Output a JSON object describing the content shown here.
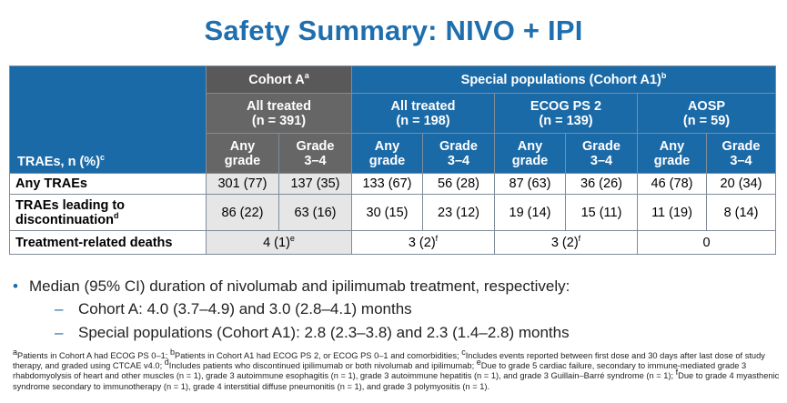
{
  "title": "Safety Summary: NIVO + IPI",
  "table": {
    "cohort_a": "Cohort A",
    "cohort_a_sup": "a",
    "special": "Special populations (Cohort A1)",
    "special_sup": "b",
    "groups": [
      {
        "line1": "All treated",
        "line2": "(n = 391)"
      },
      {
        "line1": "All treated",
        "line2": "(n = 198)"
      },
      {
        "line1": "ECOG PS 2",
        "line2": "(n = 139)"
      },
      {
        "line1": "AOSP",
        "line2": "(n = 59)"
      }
    ],
    "row_header": "TRAEs, n (%)",
    "row_header_sup": "c",
    "col_any": [
      "Any",
      "grade"
    ],
    "col_g34": [
      "Grade",
      "3–4"
    ],
    "rows": [
      {
        "label": "Any TRAEs",
        "values": [
          "301 (77)",
          "137 (35)",
          "133 (67)",
          "56 (28)",
          "87 (63)",
          "36 (26)",
          "46 (78)",
          "20 (34)"
        ]
      },
      {
        "label_line1": "TRAEs leading to",
        "label_line2": "discontinuation",
        "label_sup": "d",
        "values": [
          "86 (22)",
          "63 (16)",
          "30 (15)",
          "23 (12)",
          "19 (14)",
          "15 (11)",
          "11 (19)",
          "8 (14)"
        ]
      }
    ],
    "deaths": {
      "label": "Treatment-related deaths",
      "values": [
        "4 (1)",
        "3 (2)",
        "3 (2)",
        "0"
      ],
      "sups": [
        "e",
        "f",
        "f",
        ""
      ]
    }
  },
  "bullets": {
    "main": "Median (95% CI) duration of nivolumab and ipilimumab treatment, respectively:",
    "sub": [
      "Cohort A: 4.0 (3.7–4.9) and 3.0 (2.8–4.1) months",
      "Special populations (Cohort A1): 2.8 (2.3–3.8) and 2.3 (1.4–2.8) months"
    ]
  },
  "footnotes": [
    {
      "mark": "a",
      "text": "Patients in Cohort A had ECOG PS 0–1; "
    },
    {
      "mark": "b",
      "text": "Patients in Cohort A1 had ECOG PS 2, or ECOG PS 0–1 and comorbidities; "
    },
    {
      "mark": "c",
      "text": "Includes events reported between first dose and 30 days after last dose of study therapy, and graded using CTCAE v4.0; "
    },
    {
      "mark": "d",
      "text": "Includes patients who discontinued ipilimumab or both nivolumab and ipilimumab; "
    },
    {
      "mark": "e",
      "text": "Due to grade 5 cardiac failure, secondary to immune-mediated grade 3 rhabdomyolysis of heart and other muscles (n = 1), grade 3 autoimmune esophagitis (n = 1), grade 3 autoimmune hepatitis (n = 1), and grade 3 Guillain–Barré syndrome (n = 1); "
    },
    {
      "mark": "f",
      "text": "Due to grade 4 myasthenic syndrome secondary to immunotherapy (n = 1), grade 4 interstitial diffuse pneumonitis (n = 1), and grade 3 polymyositis (n = 1)."
    }
  ]
}
